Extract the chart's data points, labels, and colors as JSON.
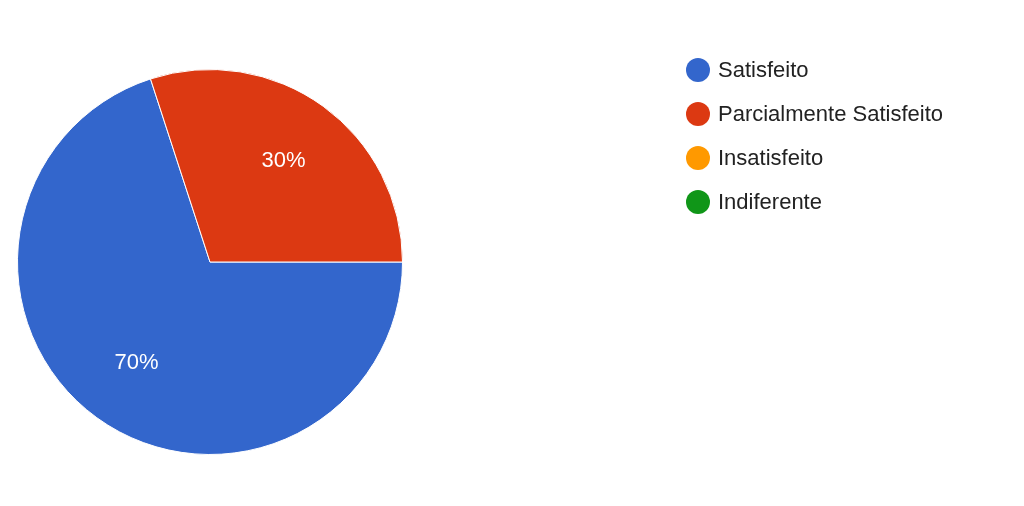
{
  "chart_data": {
    "type": "pie",
    "categories": [
      "Satisfeito",
      "Parcialmente Satisfeito",
      "Insatisfeito",
      "Indiferente"
    ],
    "values": [
      70,
      30,
      0,
      0
    ],
    "colors": [
      "#3366cc",
      "#dc3912",
      "#ff9900",
      "#109618"
    ],
    "value_labels": [
      "70%",
      "30%",
      null,
      null
    ],
    "legend": "top right"
  }
}
